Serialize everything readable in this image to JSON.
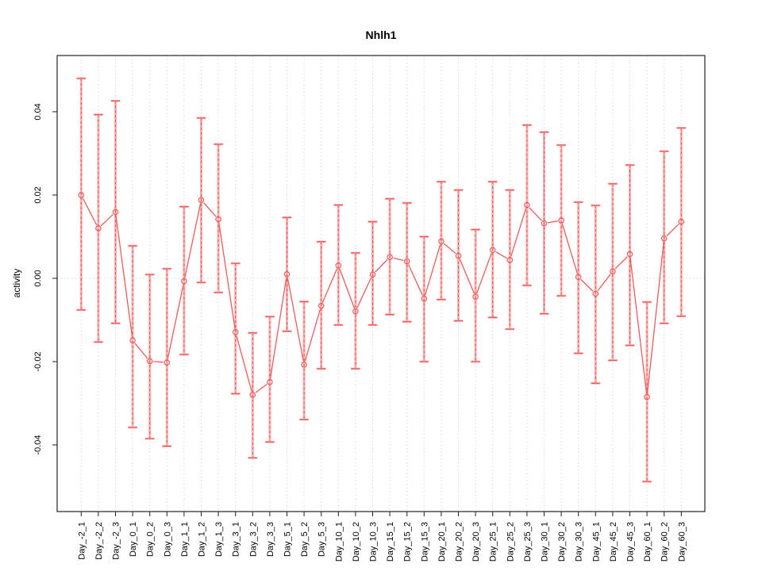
{
  "figure": {
    "title": "Nhlh1",
    "y_axis_label": "activity"
  },
  "chart_data": {
    "type": "line",
    "title": "Nhlh1",
    "xlabel": "",
    "ylabel": "activity",
    "legend": "none",
    "grid": "vertical dotted gridline at every category; dotted horizontal line at y=0",
    "marker": "open-circle",
    "categories": [
      "Day_-2_1",
      "Day_-2_2",
      "Day_-2_3",
      "Day_0_1",
      "Day_0_2",
      "Day_0_3",
      "Day_1_1",
      "Day_1_2",
      "Day_1_3",
      "Day_3_1",
      "Day_3_2",
      "Day_3_3",
      "Day_5_1",
      "Day_5_2",
      "Day_5_3",
      "Day_10_1",
      "Day_10_2",
      "Day_10_3",
      "Day_15_1",
      "Day_15_2",
      "Day_15_3",
      "Day_20_1",
      "Day_20_2",
      "Day_20_3",
      "Day_25_1",
      "Day_25_2",
      "Day_25_3",
      "Day_30_1",
      "Day_30_2",
      "Day_30_3",
      "Day_45_1",
      "Day_45_2",
      "Day_45_3",
      "Day_60_1",
      "Day_60_2",
      "Day_60_3"
    ],
    "series": [
      {
        "name": "activity",
        "values": [
          0.02,
          0.012,
          0.0159,
          -0.0149,
          -0.0199,
          -0.0202,
          -0.0007,
          0.0188,
          0.0142,
          -0.0129,
          -0.028,
          -0.0249,
          0.001,
          -0.0207,
          -0.0066,
          0.0031,
          -0.0079,
          0.0009,
          0.0051,
          0.0041,
          -0.0049,
          0.0089,
          0.0054,
          -0.0044,
          0.0068,
          0.0044,
          0.0176,
          0.0132,
          0.0139,
          0.0003,
          -0.0037,
          0.0017,
          0.0058,
          -0.0285,
          0.0096,
          0.0136
        ]
      }
    ],
    "error_upper": [
      0.048,
      0.0393,
      0.0426,
      0.0078,
      0.0009,
      0.0023,
      0.0172,
      0.0385,
      0.0322,
      0.0036,
      -0.0131,
      -0.0092,
      0.0146,
      -0.0056,
      0.0088,
      0.0176,
      0.0061,
      0.0136,
      0.0191,
      0.0181,
      0.01,
      0.0232,
      0.0212,
      0.0117,
      0.0232,
      0.0212,
      0.0368,
      0.0351,
      0.032,
      0.0183,
      0.0175,
      0.0227,
      0.0272,
      -0.0057,
      0.0305,
      0.0361
    ],
    "error_lower": [
      -0.0076,
      -0.0153,
      -0.0108,
      -0.0358,
      -0.0385,
      -0.0403,
      -0.0183,
      -0.001,
      -0.0034,
      -0.0277,
      -0.0431,
      -0.0393,
      -0.0127,
      -0.0339,
      -0.0217,
      -0.0112,
      -0.0217,
      -0.0112,
      -0.0087,
      -0.0104,
      -0.02,
      -0.0051,
      -0.0102,
      -0.02,
      -0.0094,
      -0.0122,
      -0.0017,
      -0.0085,
      -0.0042,
      -0.018,
      -0.0252,
      -0.0197,
      -0.0161,
      -0.0488,
      -0.0108,
      -0.0091
    ],
    "yticks": [
      -0.04,
      -0.02,
      0,
      0.02,
      0.04
    ],
    "ytick_labels": [
      "-0.04",
      "-0.02",
      "0.00",
      "0.02",
      "0.04"
    ],
    "ylim": [
      -0.056,
      0.0535
    ],
    "colors": {
      "series": "#ee5a5a",
      "error_band": "#f8b0b0",
      "error_dash": "#e84c4c",
      "gridline": "#d9d9d9",
      "box": "#222222",
      "text": "#000000",
      "background": "#ffffff"
    }
  }
}
